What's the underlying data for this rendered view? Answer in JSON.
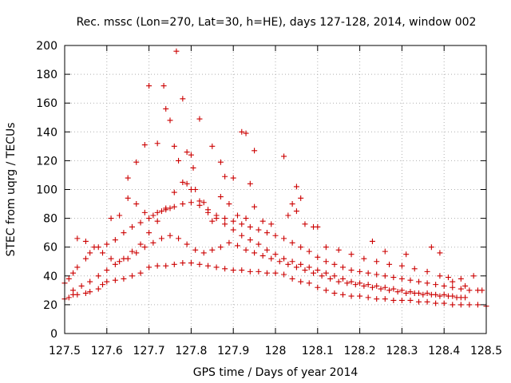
{
  "chart_data": {
    "type": "scatter",
    "title": "Rec. mssc (Lon=270, Lat=30, h=HE), days 127-128, 2014, window 002",
    "xlabel": "GPS time / Days of year 2014",
    "ylabel": "STEC from uqrg / TECUs",
    "xlim": [
      127.5,
      128.5
    ],
    "ylim": [
      0,
      200
    ],
    "xticks": [
      "127.5",
      "127.6",
      "127.7",
      "127.8",
      "127.9",
      "128",
      "128.1",
      "128.2",
      "128.3",
      "128.4",
      "128.5"
    ],
    "yticks": [
      "0",
      "20",
      "40",
      "60",
      "80",
      "100",
      "120",
      "140",
      "160",
      "180",
      "200"
    ],
    "grid": true,
    "marker": "+",
    "color": "#cc0000",
    "series": [
      {
        "points": [
          [
            127.5,
            24
          ],
          [
            127.51,
            25
          ],
          [
            127.52,
            27
          ],
          [
            127.53,
            27
          ],
          [
            127.55,
            28
          ],
          [
            127.56,
            29
          ],
          [
            127.58,
            31
          ],
          [
            127.59,
            34
          ],
          [
            127.6,
            36
          ],
          [
            127.62,
            37
          ],
          [
            127.64,
            38
          ],
          [
            127.66,
            40
          ],
          [
            127.68,
            42
          ],
          [
            127.7,
            46
          ],
          [
            127.72,
            47
          ],
          [
            127.74,
            47
          ],
          [
            127.76,
            48
          ],
          [
            127.78,
            49
          ],
          [
            127.8,
            49
          ],
          [
            127.82,
            48
          ],
          [
            127.84,
            47
          ],
          [
            127.86,
            46
          ],
          [
            127.88,
            45
          ],
          [
            127.9,
            44
          ],
          [
            127.92,
            44
          ],
          [
            127.94,
            43
          ],
          [
            127.96,
            43
          ],
          [
            127.98,
            42
          ],
          [
            128.0,
            42
          ],
          [
            128.02,
            41
          ],
          [
            128.04,
            38
          ],
          [
            128.06,
            36
          ],
          [
            128.08,
            35
          ],
          [
            128.1,
            32
          ],
          [
            128.12,
            30
          ],
          [
            128.14,
            28
          ],
          [
            128.16,
            27
          ],
          [
            128.18,
            26
          ],
          [
            128.2,
            26
          ],
          [
            128.22,
            25
          ],
          [
            128.24,
            24
          ],
          [
            128.26,
            24
          ],
          [
            128.28,
            23
          ],
          [
            128.3,
            23
          ],
          [
            128.32,
            23
          ],
          [
            128.34,
            22
          ],
          [
            128.36,
            22
          ],
          [
            128.38,
            21
          ],
          [
            128.4,
            21
          ],
          [
            128.42,
            20
          ],
          [
            128.44,
            20
          ],
          [
            128.46,
            20
          ],
          [
            128.48,
            20
          ],
          [
            128.5,
            19
          ],
          [
            127.5,
            35
          ],
          [
            127.51,
            38
          ],
          [
            127.52,
            42
          ],
          [
            127.53,
            46
          ],
          [
            127.55,
            52
          ],
          [
            127.56,
            56
          ],
          [
            127.58,
            60
          ],
          [
            127.6,
            62
          ],
          [
            127.62,
            65
          ],
          [
            127.64,
            70
          ],
          [
            127.66,
            74
          ],
          [
            127.68,
            77
          ],
          [
            127.7,
            80
          ],
          [
            127.72,
            84
          ],
          [
            127.74,
            86
          ],
          [
            127.76,
            88
          ],
          [
            127.78,
            90
          ],
          [
            127.8,
            91
          ],
          [
            127.82,
            89
          ],
          [
            127.84,
            86
          ],
          [
            127.86,
            82
          ],
          [
            127.88,
            80
          ],
          [
            127.9,
            78
          ],
          [
            127.92,
            76
          ],
          [
            127.94,
            74
          ],
          [
            127.96,
            72
          ],
          [
            127.98,
            70
          ],
          [
            128.0,
            68
          ],
          [
            128.02,
            66
          ],
          [
            128.04,
            63
          ],
          [
            128.06,
            60
          ],
          [
            128.08,
            57
          ],
          [
            128.1,
            53
          ],
          [
            128.12,
            50
          ],
          [
            128.14,
            48
          ],
          [
            128.16,
            46
          ],
          [
            128.18,
            44
          ],
          [
            128.2,
            43
          ],
          [
            128.22,
            42
          ],
          [
            128.24,
            41
          ],
          [
            128.26,
            40
          ],
          [
            128.28,
            39
          ],
          [
            128.3,
            38
          ],
          [
            128.32,
            37
          ],
          [
            128.34,
            36
          ],
          [
            128.36,
            35
          ],
          [
            128.38,
            34
          ],
          [
            128.4,
            33
          ],
          [
            128.42,
            32
          ],
          [
            128.44,
            31
          ],
          [
            128.46,
            30
          ],
          [
            127.53,
            66
          ],
          [
            127.55,
            64
          ],
          [
            127.57,
            60
          ],
          [
            127.59,
            56
          ],
          [
            127.61,
            52
          ],
          [
            127.63,
            50
          ],
          [
            127.65,
            52
          ],
          [
            127.67,
            56
          ],
          [
            127.69,
            60
          ],
          [
            127.71,
            63
          ],
          [
            127.73,
            66
          ],
          [
            127.75,
            68
          ],
          [
            127.77,
            66
          ],
          [
            127.79,
            62
          ],
          [
            127.81,
            58
          ],
          [
            127.83,
            56
          ],
          [
            127.85,
            58
          ],
          [
            127.87,
            60
          ],
          [
            127.89,
            63
          ],
          [
            127.91,
            61
          ],
          [
            127.93,
            58
          ],
          [
            127.95,
            56
          ],
          [
            127.97,
            54
          ],
          [
            127.99,
            52
          ],
          [
            128.01,
            50
          ],
          [
            128.03,
            48
          ],
          [
            128.05,
            46
          ],
          [
            128.07,
            44
          ],
          [
            128.09,
            42
          ],
          [
            128.11,
            40
          ],
          [
            128.13,
            38
          ],
          [
            128.15,
            36
          ],
          [
            128.17,
            35
          ],
          [
            128.19,
            34
          ],
          [
            128.21,
            33
          ],
          [
            128.23,
            32
          ],
          [
            128.25,
            31
          ],
          [
            128.27,
            30
          ],
          [
            128.29,
            29
          ],
          [
            128.31,
            28
          ],
          [
            128.33,
            28
          ],
          [
            128.35,
            27
          ],
          [
            128.37,
            27
          ],
          [
            128.39,
            26
          ],
          [
            128.41,
            26
          ],
          [
            128.43,
            25
          ],
          [
            128.45,
            25
          ],
          [
            127.52,
            30
          ],
          [
            127.54,
            33
          ],
          [
            127.56,
            36
          ],
          [
            127.58,
            40
          ],
          [
            127.6,
            44
          ],
          [
            127.62,
            48
          ],
          [
            127.64,
            52
          ],
          [
            127.66,
            57
          ],
          [
            127.68,
            62
          ],
          [
            127.7,
            70
          ],
          [
            127.72,
            78
          ],
          [
            127.74,
            87
          ],
          [
            127.76,
            98
          ],
          [
            127.78,
            105
          ],
          [
            127.8,
            100
          ],
          [
            127.82,
            92
          ],
          [
            127.84,
            84
          ],
          [
            127.86,
            80
          ],
          [
            127.88,
            76
          ],
          [
            127.9,
            72
          ],
          [
            127.92,
            68
          ],
          [
            127.94,
            65
          ],
          [
            127.96,
            62
          ],
          [
            127.98,
            58
          ],
          [
            128.0,
            55
          ],
          [
            128.02,
            52
          ],
          [
            128.04,
            50
          ],
          [
            128.06,
            48
          ],
          [
            128.08,
            46
          ],
          [
            128.1,
            44
          ],
          [
            128.12,
            42
          ],
          [
            128.14,
            40
          ],
          [
            128.16,
            38
          ],
          [
            128.18,
            36
          ],
          [
            128.2,
            35
          ],
          [
            128.22,
            34
          ],
          [
            128.24,
            33
          ],
          [
            128.26,
            32
          ],
          [
            128.28,
            31
          ],
          [
            128.3,
            30
          ],
          [
            128.32,
            29
          ],
          [
            128.34,
            28
          ],
          [
            128.36,
            28
          ],
          [
            128.38,
            27
          ],
          [
            128.4,
            27
          ],
          [
            128.42,
            26
          ],
          [
            128.44,
            25
          ],
          [
            127.65,
            108
          ],
          [
            127.67,
            119
          ],
          [
            127.69,
            131
          ],
          [
            127.7,
            172
          ],
          [
            127.72,
            132
          ],
          [
            127.735,
            172
          ],
          [
            127.74,
            156
          ],
          [
            127.75,
            148
          ],
          [
            127.76,
            130
          ],
          [
            127.765,
            196
          ],
          [
            127.78,
            163
          ],
          [
            127.79,
            126
          ],
          [
            127.8,
            124
          ],
          [
            127.805,
            115
          ],
          [
            127.82,
            149
          ],
          [
            127.85,
            130
          ],
          [
            127.87,
            119
          ],
          [
            127.88,
            109
          ],
          [
            127.9,
            108
          ],
          [
            127.92,
            140
          ],
          [
            127.93,
            139
          ],
          [
            127.94,
            104
          ],
          [
            127.95,
            127
          ],
          [
            128.02,
            123
          ],
          [
            128.05,
            102
          ],
          [
            128.06,
            94
          ],
          [
            128.04,
            90
          ],
          [
            127.61,
            80
          ],
          [
            127.63,
            82
          ],
          [
            127.65,
            94
          ],
          [
            127.67,
            90
          ],
          [
            127.69,
            84
          ],
          [
            127.71,
            82
          ],
          [
            127.73,
            85
          ],
          [
            127.75,
            87
          ],
          [
            127.77,
            120
          ],
          [
            127.79,
            104
          ],
          [
            127.81,
            100
          ],
          [
            127.83,
            91
          ],
          [
            127.85,
            78
          ],
          [
            127.87,
            95
          ],
          [
            127.89,
            90
          ],
          [
            127.91,
            82
          ],
          [
            127.93,
            80
          ],
          [
            127.95,
            88
          ],
          [
            127.97,
            78
          ],
          [
            127.99,
            76
          ],
          [
            128.03,
            82
          ],
          [
            128.05,
            85
          ],
          [
            128.07,
            76
          ],
          [
            128.09,
            74
          ],
          [
            128.1,
            74
          ],
          [
            128.23,
            64
          ],
          [
            128.26,
            57
          ],
          [
            128.31,
            55
          ],
          [
            128.37,
            60
          ],
          [
            128.39,
            56
          ],
          [
            128.41,
            39
          ],
          [
            128.44,
            38
          ],
          [
            128.47,
            40
          ],
          [
            128.49,
            30
          ],
          [
            128.12,
            60
          ],
          [
            128.15,
            58
          ],
          [
            128.18,
            55
          ],
          [
            128.21,
            52
          ],
          [
            128.24,
            50
          ],
          [
            128.27,
            48
          ],
          [
            128.3,
            47
          ],
          [
            128.33,
            45
          ],
          [
            128.36,
            43
          ],
          [
            128.39,
            40
          ],
          [
            128.42,
            36
          ],
          [
            128.45,
            33
          ],
          [
            128.48,
            30
          ]
        ]
      }
    ]
  }
}
